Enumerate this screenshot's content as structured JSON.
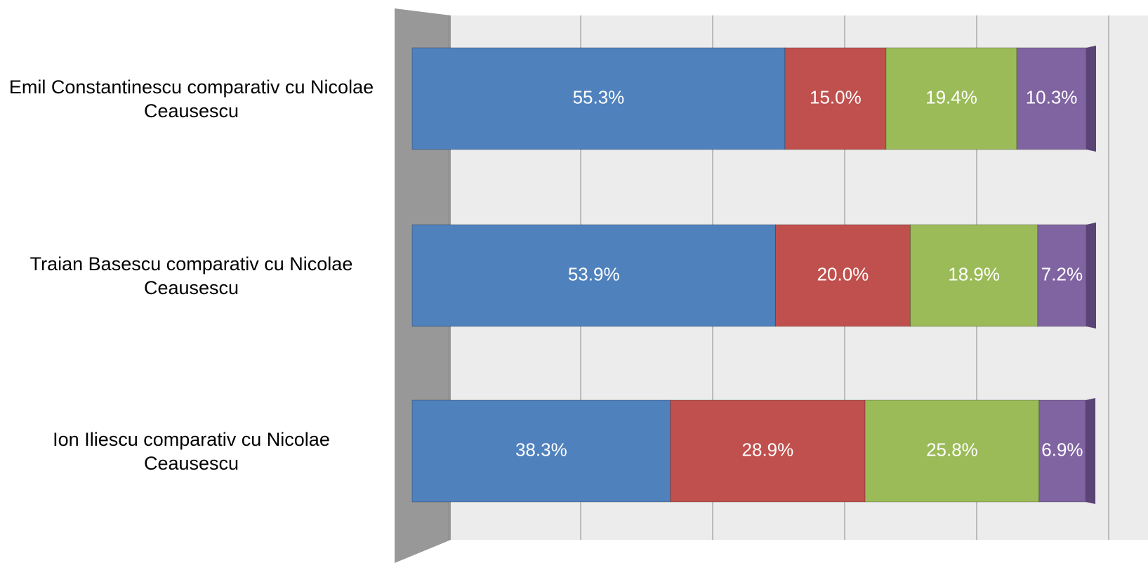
{
  "chart_data": {
    "type": "bar",
    "orientation": "horizontal",
    "stacked": true,
    "categories": [
      "Emil Constantinescu comparativ cu Nicolae Ceausescu",
      "Traian Basescu comparativ cu Nicolae Ceausescu",
      "Ion Iliescu comparativ cu Nicolae Ceausescu"
    ],
    "series": [
      {
        "color": "#4f81bd",
        "values": [
          55.3,
          53.9,
          38.3
        ],
        "value_labels": [
          "55.3%",
          "53.9%",
          "38.3%"
        ]
      },
      {
        "color": "#c0504d",
        "values": [
          15.0,
          20.0,
          28.9
        ],
        "value_labels": [
          "15.0%",
          "20.0%",
          "28.9%"
        ]
      },
      {
        "color": "#9bbb59",
        "values": [
          19.4,
          18.9,
          25.8
        ],
        "value_labels": [
          "19.4%",
          "18.9%",
          "25.8%"
        ]
      },
      {
        "color": "#8064a2",
        "values": [
          10.3,
          7.2,
          6.9
        ],
        "value_labels": [
          "10.3%",
          "7.2%",
          "6.9%"
        ]
      }
    ],
    "xlim": [
      0,
      100
    ],
    "xticks": [
      0,
      20,
      40,
      60,
      80,
      100
    ],
    "grid": true
  }
}
